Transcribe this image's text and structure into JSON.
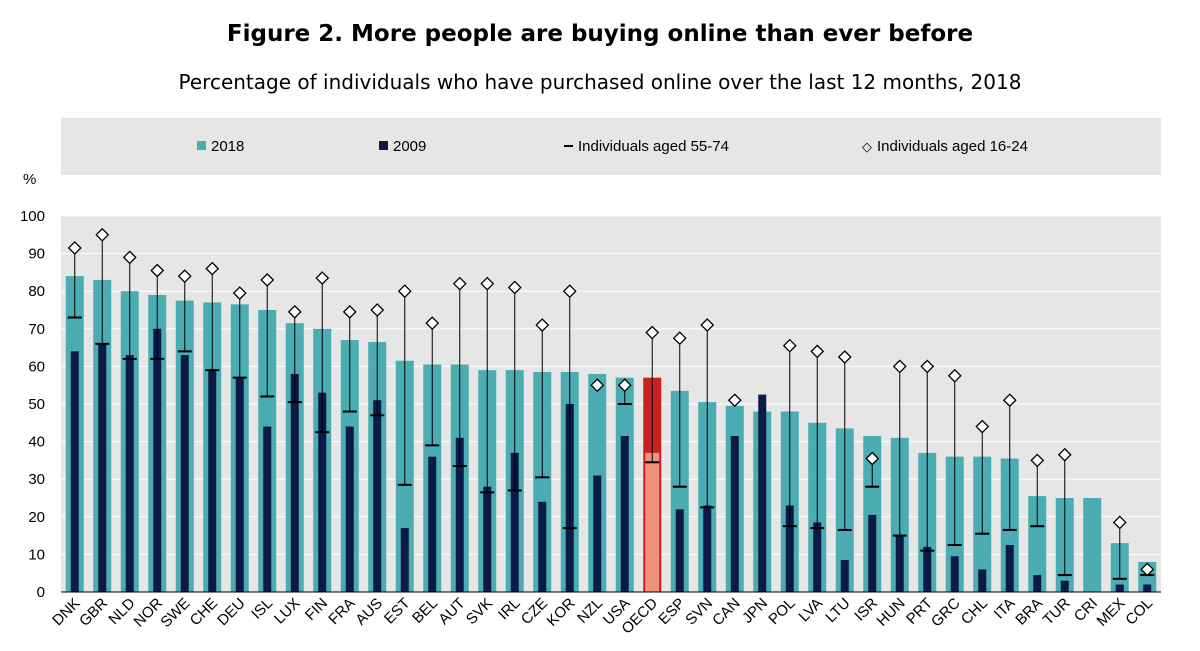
{
  "colors": {
    "c2018": "#4bacb1",
    "c2009": "#0b1a47",
    "oecd2018": "#c8211f",
    "oecd2009": "#f08f7c",
    "grid": "#ffffff",
    "plotbg": "#e6e6e6"
  },
  "chart_data": {
    "type": "bar",
    "title": "Figure 2. More people are buying online than ever before",
    "subtitle": "Percentage of individuals who have purchased online over the last 12 months, 2018",
    "ylabel": "%",
    "ylim": [
      0,
      100
    ],
    "yticks": [
      "0",
      "10",
      "20",
      "30",
      "40",
      "50",
      "60",
      "70",
      "80",
      "90",
      "100"
    ],
    "legend": {
      "s2018": "2018",
      "s2009": "2009",
      "s5574": "Individuals aged 55-74",
      "s1624": "Individuals aged 16-24"
    },
    "categories": [
      "DNK",
      "GBR",
      "NLD",
      "NOR",
      "SWE",
      "CHE",
      "DEU",
      "ISL",
      "LUX",
      "FIN",
      "FRA",
      "AUS",
      "EST",
      "BEL",
      "AUT",
      "SVK",
      "IRL",
      "CZE",
      "KOR",
      "NZL",
      "USA",
      "OECD",
      "ESP",
      "SVN",
      "CAN",
      "JPN",
      "POL",
      "LVA",
      "LTU",
      "ISR",
      "HUN",
      "PRT",
      "GRC",
      "CHL",
      "ITA",
      "BRA",
      "TUR",
      "CRI",
      "MEX",
      "COL"
    ],
    "highlight": "OECD",
    "series": [
      {
        "name": "2018",
        "values": [
          84,
          83,
          80,
          79,
          77.5,
          77,
          76.5,
          75,
          71.5,
          70,
          67,
          66.5,
          61.5,
          60.5,
          60.5,
          59,
          59,
          58.5,
          58.5,
          58,
          57,
          57,
          53.5,
          50.5,
          49.5,
          48,
          48,
          45,
          43.5,
          41.5,
          41,
          37,
          36,
          36,
          35.5,
          25.5,
          25,
          25,
          13,
          8
        ]
      },
      {
        "name": "2009",
        "values": [
          64,
          66,
          63,
          70,
          63,
          59,
          57,
          44,
          58,
          53,
          44,
          51,
          17,
          36,
          41,
          28,
          37,
          24,
          50,
          31,
          41.5,
          37,
          22,
          23,
          41.5,
          52.5,
          23,
          18.5,
          8.5,
          20.5,
          15,
          12,
          9.5,
          6,
          12.5,
          4.5,
          3,
          null,
          2,
          2
        ]
      },
      {
        "name": "Individuals aged 55-74",
        "values": [
          73,
          66,
          62,
          62,
          64,
          59,
          57,
          52,
          50.5,
          42.5,
          48,
          47,
          28.5,
          39,
          33.5,
          26.5,
          27,
          30.5,
          17,
          null,
          50,
          34.5,
          28,
          22.5,
          null,
          null,
          17.5,
          17,
          16.5,
          28,
          15,
          11,
          12.5,
          15.5,
          16.5,
          17.5,
          4.5,
          null,
          3.5,
          4.5
        ]
      },
      {
        "name": "Individuals aged 16-24",
        "values": [
          91.5,
          95,
          89,
          85.5,
          84,
          86,
          79.5,
          83,
          74.5,
          83.5,
          74.5,
          75,
          80,
          71.5,
          82,
          82,
          81,
          71,
          80,
          55,
          55,
          69,
          67.5,
          71,
          51,
          null,
          65.5,
          64,
          62.5,
          35.5,
          60,
          60,
          57.5,
          44,
          51,
          35,
          36.5,
          null,
          18.5,
          6
        ]
      }
    ]
  }
}
